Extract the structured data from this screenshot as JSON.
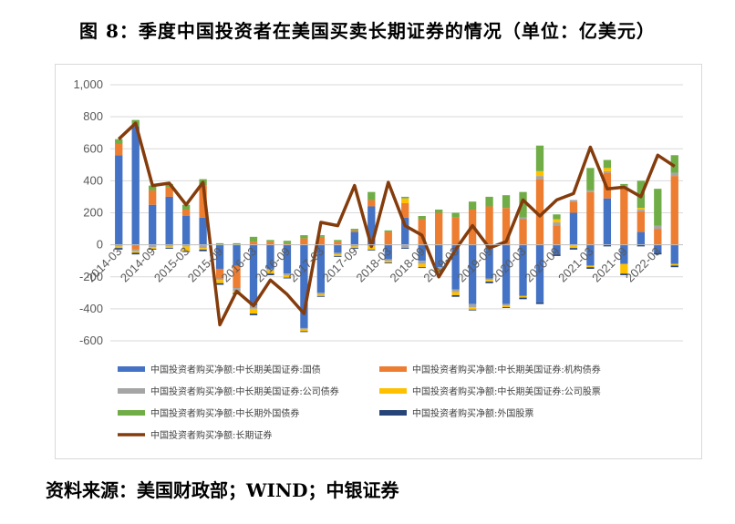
{
  "figure": {
    "title": "图 8：季度中国投资者在美国买卖长期证券的情况（单位：亿美元）",
    "source": "资料来源：美国财政部；WIND；中银证券"
  },
  "chart_data": {
    "type": "bar",
    "stacked": true,
    "ylim": [
      -600,
      1000
    ],
    "yticks": [
      -600,
      -400,
      -200,
      0,
      200,
      400,
      600,
      800,
      1000
    ],
    "ytick_labels": [
      "-600",
      "-400",
      "-200",
      "0",
      "200",
      "400",
      "600",
      "800",
      "1,000"
    ],
    "grid": true,
    "legend_position": "bottom",
    "categories": [
      "2014-03",
      "2014-06",
      "2014-09",
      "2014-12",
      "2015-03",
      "2015-06",
      "2015-09",
      "2015-12",
      "2016-03",
      "2016-06",
      "2016-09",
      "2016-12",
      "2017-03",
      "2017-06",
      "2017-09",
      "2017-12",
      "2018-03",
      "2018-06",
      "2018-09",
      "2018-12",
      "2019-03",
      "2019-06",
      "2019-09",
      "2019-12",
      "2020-03",
      "2020-06",
      "2020-09",
      "2020-12",
      "2021-03",
      "2021-06",
      "2021-09",
      "2021-12",
      "2022-03",
      "2022-06"
    ],
    "x_tick_labels": [
      "2014-03",
      "2014-09",
      "2015-03",
      "2015-09",
      "2016-03",
      "2016-09",
      "2017-03",
      "2017-09",
      "2018-03",
      "2018-09",
      "2019-03",
      "2019-09",
      "2020-03",
      "2020-09",
      "2021-03",
      "2021-09",
      "2022-03"
    ],
    "series": [
      {
        "name": "中国投资者购买净额:中长期美国证券:国债",
        "color": "#4472C4",
        "values": [
          560,
          740,
          250,
          300,
          180,
          170,
          -150,
          -130,
          -380,
          -150,
          -180,
          -520,
          -300,
          -50,
          80,
          240,
          -90,
          170,
          -100,
          -140,
          -280,
          -370,
          -210,
          -370,
          -320,
          -360,
          -60,
          200,
          -130,
          290,
          -120,
          80,
          -50,
          -120
        ]
      },
      {
        "name": "中国投资者购买净额:中长期美国证券:机构债券",
        "color": "#ED7D31",
        "values": [
          70,
          -30,
          90,
          60,
          40,
          200,
          -60,
          -140,
          20,
          20,
          10,
          40,
          50,
          20,
          10,
          40,
          80,
          90,
          160,
          200,
          170,
          220,
          240,
          230,
          160,
          410,
          120,
          70,
          330,
          160,
          360,
          130,
          100,
          430
        ]
      },
      {
        "name": "中国投资者购买净额:中长期美国证券:公司债券",
        "color": "#A5A5A5",
        "values": [
          -10,
          -10,
          -15,
          -10,
          -10,
          -20,
          -10,
          -20,
          -20,
          -10,
          -10,
          -10,
          -10,
          -10,
          -10,
          -10,
          -10,
          -20,
          -20,
          -15,
          -15,
          -20,
          -10,
          -10,
          10,
          20,
          20,
          10,
          10,
          10,
          10,
          10,
          20,
          20
        ]
      },
      {
        "name": "中国投资者购买净额:中长期美国证券:公司股票",
        "color": "#FFC000",
        "values": [
          -10,
          -10,
          -10,
          -10,
          -30,
          -10,
          -20,
          -10,
          -30,
          -20,
          -15,
          -10,
          -10,
          -10,
          -10,
          -20,
          -10,
          30,
          -20,
          -10,
          -20,
          -15,
          -10,
          -10,
          -10,
          30,
          20,
          -20,
          -10,
          20,
          -60,
          10,
          0,
          -10
        ]
      },
      {
        "name": "中国投资者购买净额:中长期外国债券",
        "color": "#70AD47",
        "values": [
          30,
          40,
          30,
          20,
          30,
          40,
          10,
          10,
          30,
          10,
          15,
          20,
          10,
          10,
          10,
          50,
          10,
          10,
          20,
          20,
          30,
          50,
          60,
          80,
          160,
          160,
          30,
          0,
          140,
          50,
          10,
          170,
          230,
          110
        ]
      },
      {
        "name": "中国投资者购买净额:外国股票",
        "color": "#264478",
        "values": [
          -10,
          -10,
          -5,
          -5,
          -5,
          -10,
          -10,
          -10,
          -10,
          -10,
          -5,
          -5,
          -5,
          -5,
          -5,
          -5,
          -5,
          -5,
          -5,
          -5,
          -10,
          -5,
          -10,
          -5,
          -10,
          -10,
          -10,
          -10,
          -10,
          -10,
          -10,
          -10,
          -10,
          -10
        ]
      },
      {
        "name": "中国投资者购买净额:长期证券",
        "color": "#843C0C",
        "type": "line",
        "values": [
          660,
          760,
          370,
          385,
          250,
          390,
          -500,
          -290,
          -380,
          -220,
          -310,
          -430,
          140,
          120,
          370,
          -10,
          390,
          120,
          60,
          -200,
          -30,
          120,
          -20,
          20,
          280,
          180,
          280,
          320,
          610,
          350,
          360,
          300,
          560,
          490
        ]
      }
    ]
  }
}
